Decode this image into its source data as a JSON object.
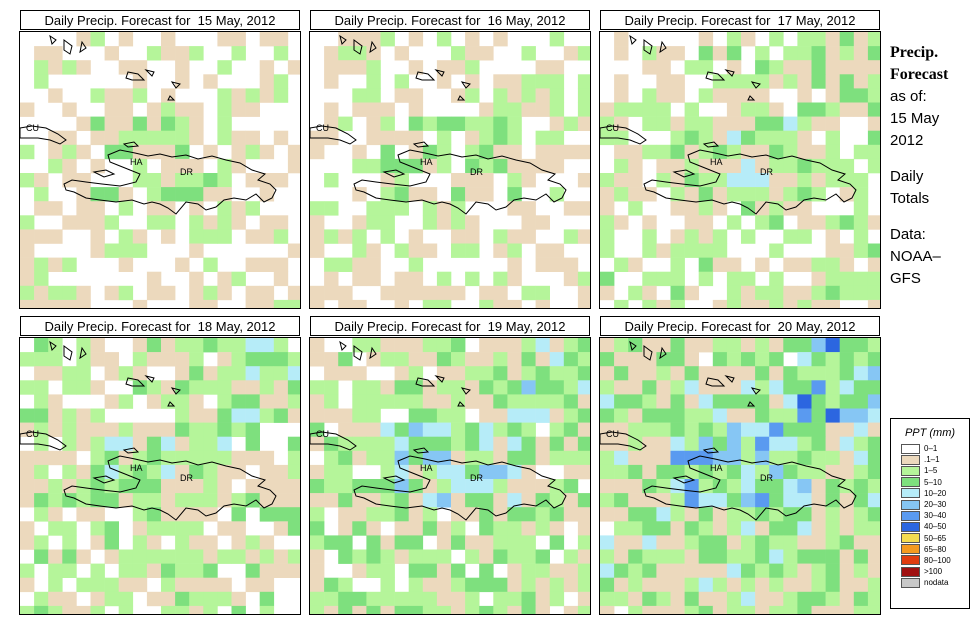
{
  "panels": [
    {
      "title": "Daily Precip. Forecast for  15 May, 2012",
      "seed": 11,
      "wet": 0.55
    },
    {
      "title": "Daily Precip. Forecast for  16 May, 2012",
      "seed": 23,
      "wet": 0.8
    },
    {
      "title": "Daily Precip. Forecast for  17 May, 2012",
      "seed": 37,
      "wet": 1.3
    },
    {
      "title": "Daily Precip. Forecast for  18 May, 2012",
      "seed": 41,
      "wet": 1.6
    },
    {
      "title": "Daily Precip. Forecast for  19 May, 2012",
      "seed": 53,
      "wet": 2.1
    },
    {
      "title": "Daily Precip. Forecast for  20 May, 2012",
      "seed": 67,
      "wet": 2.6
    }
  ],
  "labels": {
    "cu": "CU",
    "ha": "HA",
    "dr": "DR"
  },
  "side": {
    "heading1": "Precip.",
    "heading2": "Forecast",
    "asof": "as of:",
    "date1": "15 May",
    "date2": "2012",
    "daily1": "Daily",
    "daily2": "Totals",
    "data1": "Data:",
    "data2": "NOAA–",
    "data3": "GFS"
  },
  "legend": {
    "title": "PPT (mm)",
    "items": [
      {
        "label": "0–1",
        "color": "#ffffff"
      },
      {
        "label": ".1–1",
        "color": "#ecd9bd"
      },
      {
        "label": "1–5",
        "color": "#b5f59a"
      },
      {
        "label": "5–10",
        "color": "#7ee07e"
      },
      {
        "label": "10–20",
        "color": "#b6ecf8"
      },
      {
        "label": "20–30",
        "color": "#86c6f4"
      },
      {
        "label": "30–40",
        "color": "#5a9af0"
      },
      {
        "label": "40–50",
        "color": "#2c66e0"
      },
      {
        "label": "50–65",
        "color": "#f4dc50"
      },
      {
        "label": "65–80",
        "color": "#f49a20"
      },
      {
        "label": "80–100",
        "color": "#e03c10"
      },
      {
        "label": ">100",
        "color": "#a01010"
      },
      {
        "label": "nodata",
        "color": "#c8c8c8"
      }
    ]
  }
}
